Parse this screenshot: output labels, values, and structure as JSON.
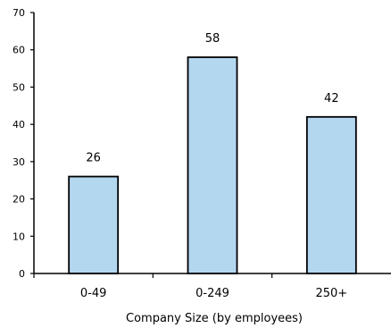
{
  "chart_data": {
    "type": "bar",
    "categories": [
      "0-49",
      "0-249",
      "250+"
    ],
    "values": [
      26,
      58,
      42
    ],
    "data_labels": [
      "26",
      "58",
      "42"
    ],
    "y_ticks": [
      "0",
      "10",
      "20",
      "30",
      "40",
      "50",
      "60",
      "70"
    ],
    "title": "",
    "xlabel": "Company Size (by employees)",
    "ylabel": "",
    "ylim": [
      0,
      70
    ],
    "grid": false,
    "legend": "none",
    "bar_color": "#b4d7f0",
    "bar_edge_color": "#000000"
  }
}
